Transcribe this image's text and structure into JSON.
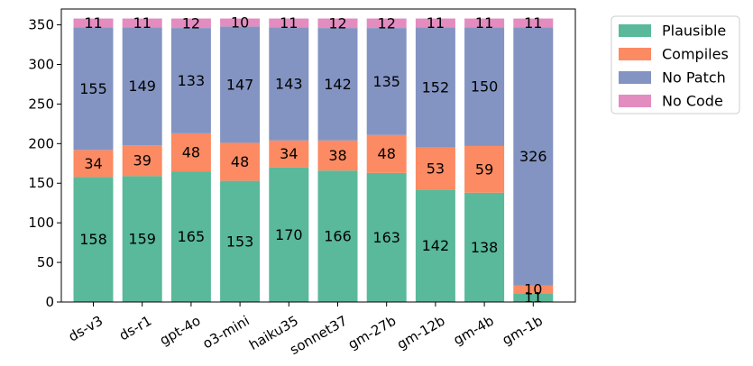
{
  "chart_data": {
    "type": "bar",
    "stacked": true,
    "categories": [
      "ds-v3",
      "ds-r1",
      "gpt-4o",
      "o3-mini",
      "haiku35",
      "sonnet37",
      "gm-27b",
      "gm-12b",
      "gm-4b",
      "gm-1b"
    ],
    "series": [
      {
        "name": "Plausible",
        "color": "#59b99a",
        "values": [
          158,
          159,
          165,
          153,
          170,
          166,
          163,
          142,
          138,
          11
        ]
      },
      {
        "name": "Compiles",
        "color": "#fc8a62",
        "values": [
          34,
          39,
          48,
          48,
          34,
          38,
          48,
          53,
          59,
          10
        ]
      },
      {
        "name": "No Patch",
        "color": "#8394c2",
        "values": [
          155,
          149,
          133,
          147,
          143,
          142,
          135,
          152,
          150,
          326
        ]
      },
      {
        "name": "No Code",
        "color": "#e38cbf",
        "values": [
          11,
          11,
          12,
          10,
          11,
          12,
          12,
          11,
          11,
          11
        ]
      }
    ],
    "ylim": [
      0,
      370
    ],
    "yticks": [
      0,
      50,
      100,
      150,
      200,
      250,
      300,
      350
    ],
    "xlabel": "",
    "ylabel": "",
    "title": "",
    "legend_position": "outside-top-right",
    "grid": false,
    "xtick_rotation": -30
  }
}
